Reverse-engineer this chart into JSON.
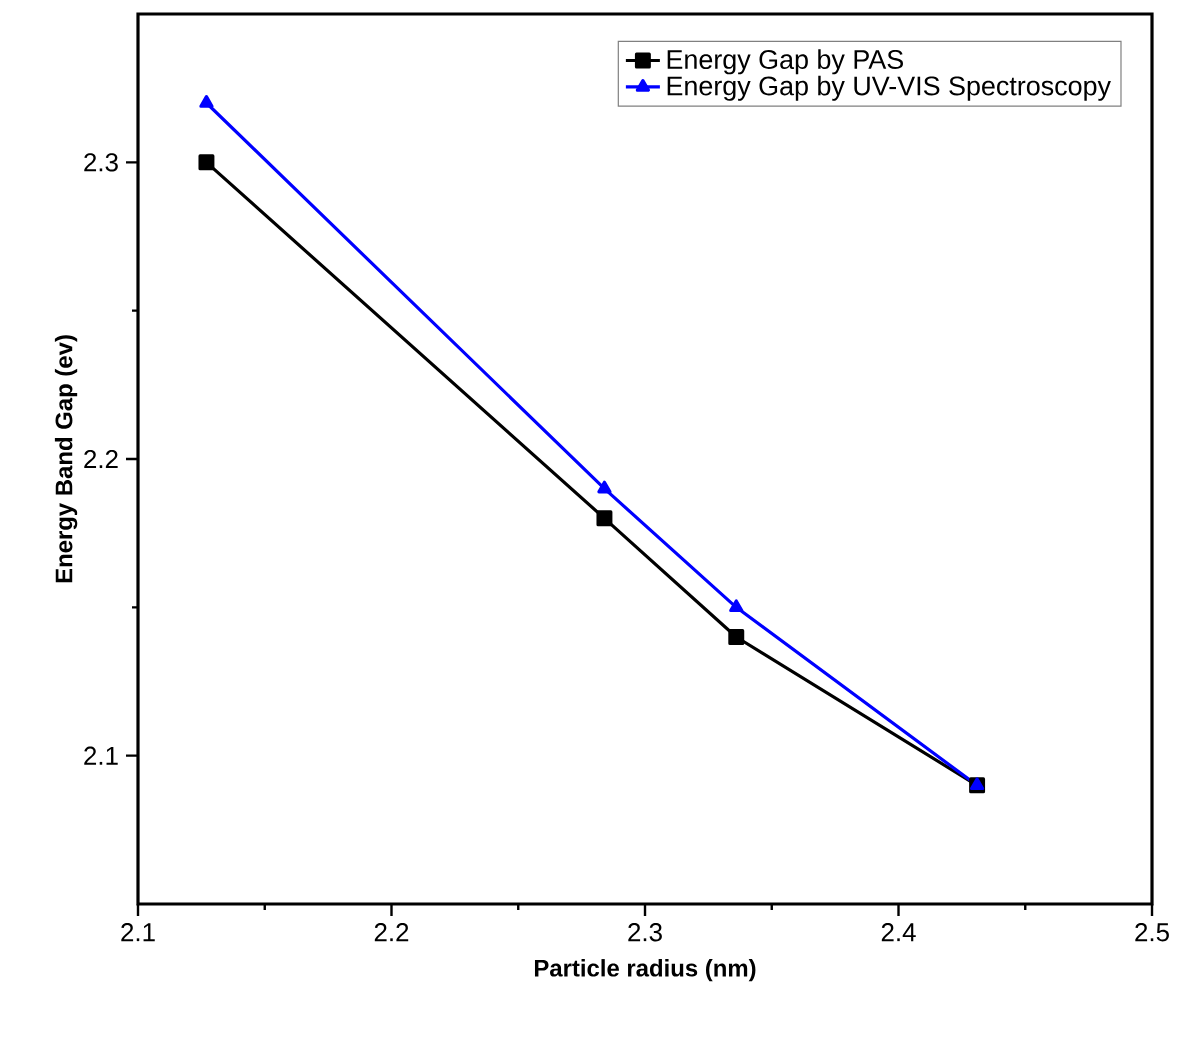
{
  "chart_data": {
    "type": "line",
    "xlabel": "Particle radius (nm)",
    "ylabel": "Energy Band Gap (ev)",
    "xlim": [
      2.1,
      2.5
    ],
    "ylim": [
      2.05,
      2.35
    ],
    "xticks": [
      2.1,
      2.2,
      2.3,
      2.4,
      2.5
    ],
    "yticks": [
      2.1,
      2.2,
      2.3
    ],
    "x": [
      2.127,
      2.284,
      2.336,
      2.431
    ],
    "legend": "top right",
    "grid": false,
    "line_style": "solid",
    "series": [
      {
        "name": "Energy Gap by PAS",
        "color": "#000000",
        "marker": "square",
        "values": [
          2.3,
          2.18,
          2.14,
          2.09
        ]
      },
      {
        "name": "Energy Gap by UV-VIS Spectroscopy",
        "color": "#0000ff",
        "marker": "triangle",
        "values": [
          2.32,
          2.19,
          2.15,
          2.09
        ]
      }
    ]
  }
}
